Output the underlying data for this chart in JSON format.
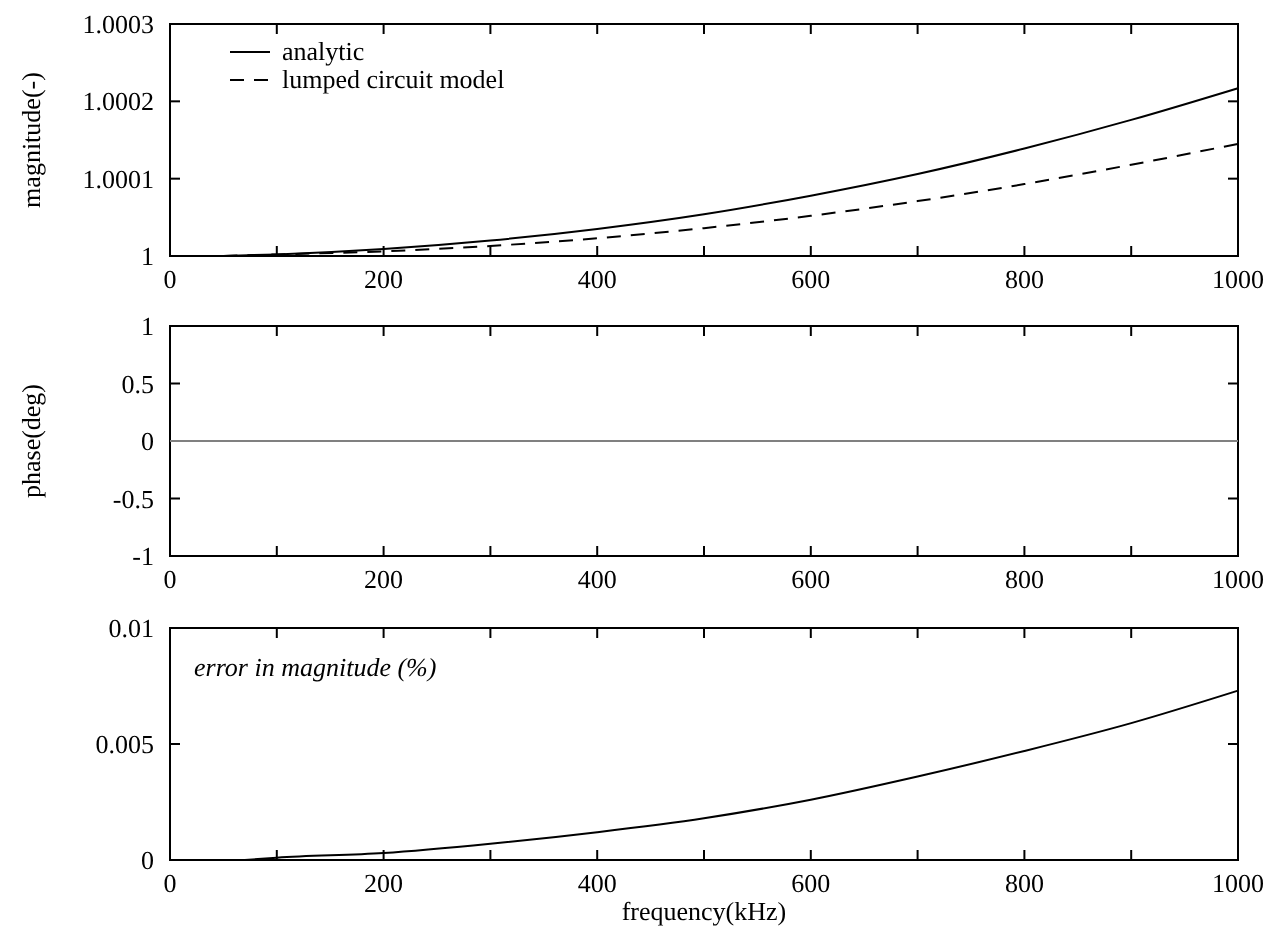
{
  "chart_data": [
    {
      "type": "line",
      "ylabel": "magnitude(-)",
      "xlim": [
        0,
        1000
      ],
      "ylim": [
        1,
        1.0003
      ],
      "xticks": [
        0,
        {
          "value": 100,
          "label": null
        },
        200,
        {
          "value": 300,
          "label": null
        },
        400,
        {
          "value": 500,
          "label": null
        },
        600,
        {
          "value": 700,
          "label": null
        },
        800,
        {
          "value": 900,
          "label": null
        },
        1000
      ],
      "yticks": [
        1,
        1.0001,
        1.0002,
        1.0003
      ],
      "legend": "top left",
      "grid": false,
      "series": [
        {
          "name": "analytic",
          "color": "#000000",
          "line_style": "solid",
          "x": [
            50,
            100,
            200,
            300,
            400,
            500,
            600,
            700,
            800,
            900,
            1000
          ],
          "values": [
            1,
            1.000002,
            1.000009,
            1.00002,
            1.000035,
            1.000054,
            1.000078,
            1.000106,
            1.000139,
            1.000176,
            1.000217
          ]
        },
        {
          "name": "lumped circuit model",
          "color": "#000000",
          "line_style": "dashed",
          "x": [
            50,
            100,
            200,
            300,
            400,
            500,
            600,
            700,
            800,
            900,
            1000
          ],
          "values": [
            1,
            1.000002,
            1.000006,
            1.000013,
            1.000023,
            1.000036,
            1.000052,
            1.000071,
            1.000093,
            1.000118,
            1.000145
          ]
        }
      ]
    },
    {
      "type": "line",
      "ylabel": "phase(deg)",
      "xlim": [
        0,
        1000
      ],
      "ylim": [
        -1,
        1
      ],
      "xticks": [
        0,
        {
          "value": 100,
          "label": null
        },
        200,
        {
          "value": 300,
          "label": null
        },
        400,
        {
          "value": 500,
          "label": null
        },
        600,
        {
          "value": 700,
          "label": null
        },
        800,
        {
          "value": 900,
          "label": null
        },
        1000
      ],
      "yticks": [
        -1,
        -0.5,
        0,
        0.5,
        1
      ],
      "grid": false,
      "series": [
        {
          "color": "#808080",
          "line_style": "solid",
          "x": [
            0,
            1000
          ],
          "values": [
            0,
            0
          ]
        }
      ]
    },
    {
      "type": "line",
      "ylabel": null,
      "xlabel": "frequency(kHz)",
      "xlim": [
        0,
        1000
      ],
      "ylim": [
        0,
        0.01
      ],
      "xticks": [
        0,
        {
          "value": 100,
          "label": null
        },
        200,
        {
          "value": 300,
          "label": null
        },
        400,
        {
          "value": 500,
          "label": null
        },
        600,
        {
          "value": 700,
          "label": null
        },
        800,
        {
          "value": 900,
          "label": null
        },
        1000
      ],
      "yticks": [
        0,
        0.005,
        0.01
      ],
      "grid": false,
      "annotations": [
        "error in magnitude (%)"
      ],
      "series": [
        {
          "color": "#000000",
          "line_style": "solid",
          "x": [
            70,
            100,
            200,
            300,
            400,
            500,
            600,
            700,
            800,
            900,
            1000
          ],
          "values": [
            0,
            0.0001,
            0.0003,
            0.0007,
            0.0012,
            0.0018,
            0.0026,
            0.0036,
            0.0047,
            0.0059,
            0.0073
          ]
        }
      ]
    }
  ]
}
